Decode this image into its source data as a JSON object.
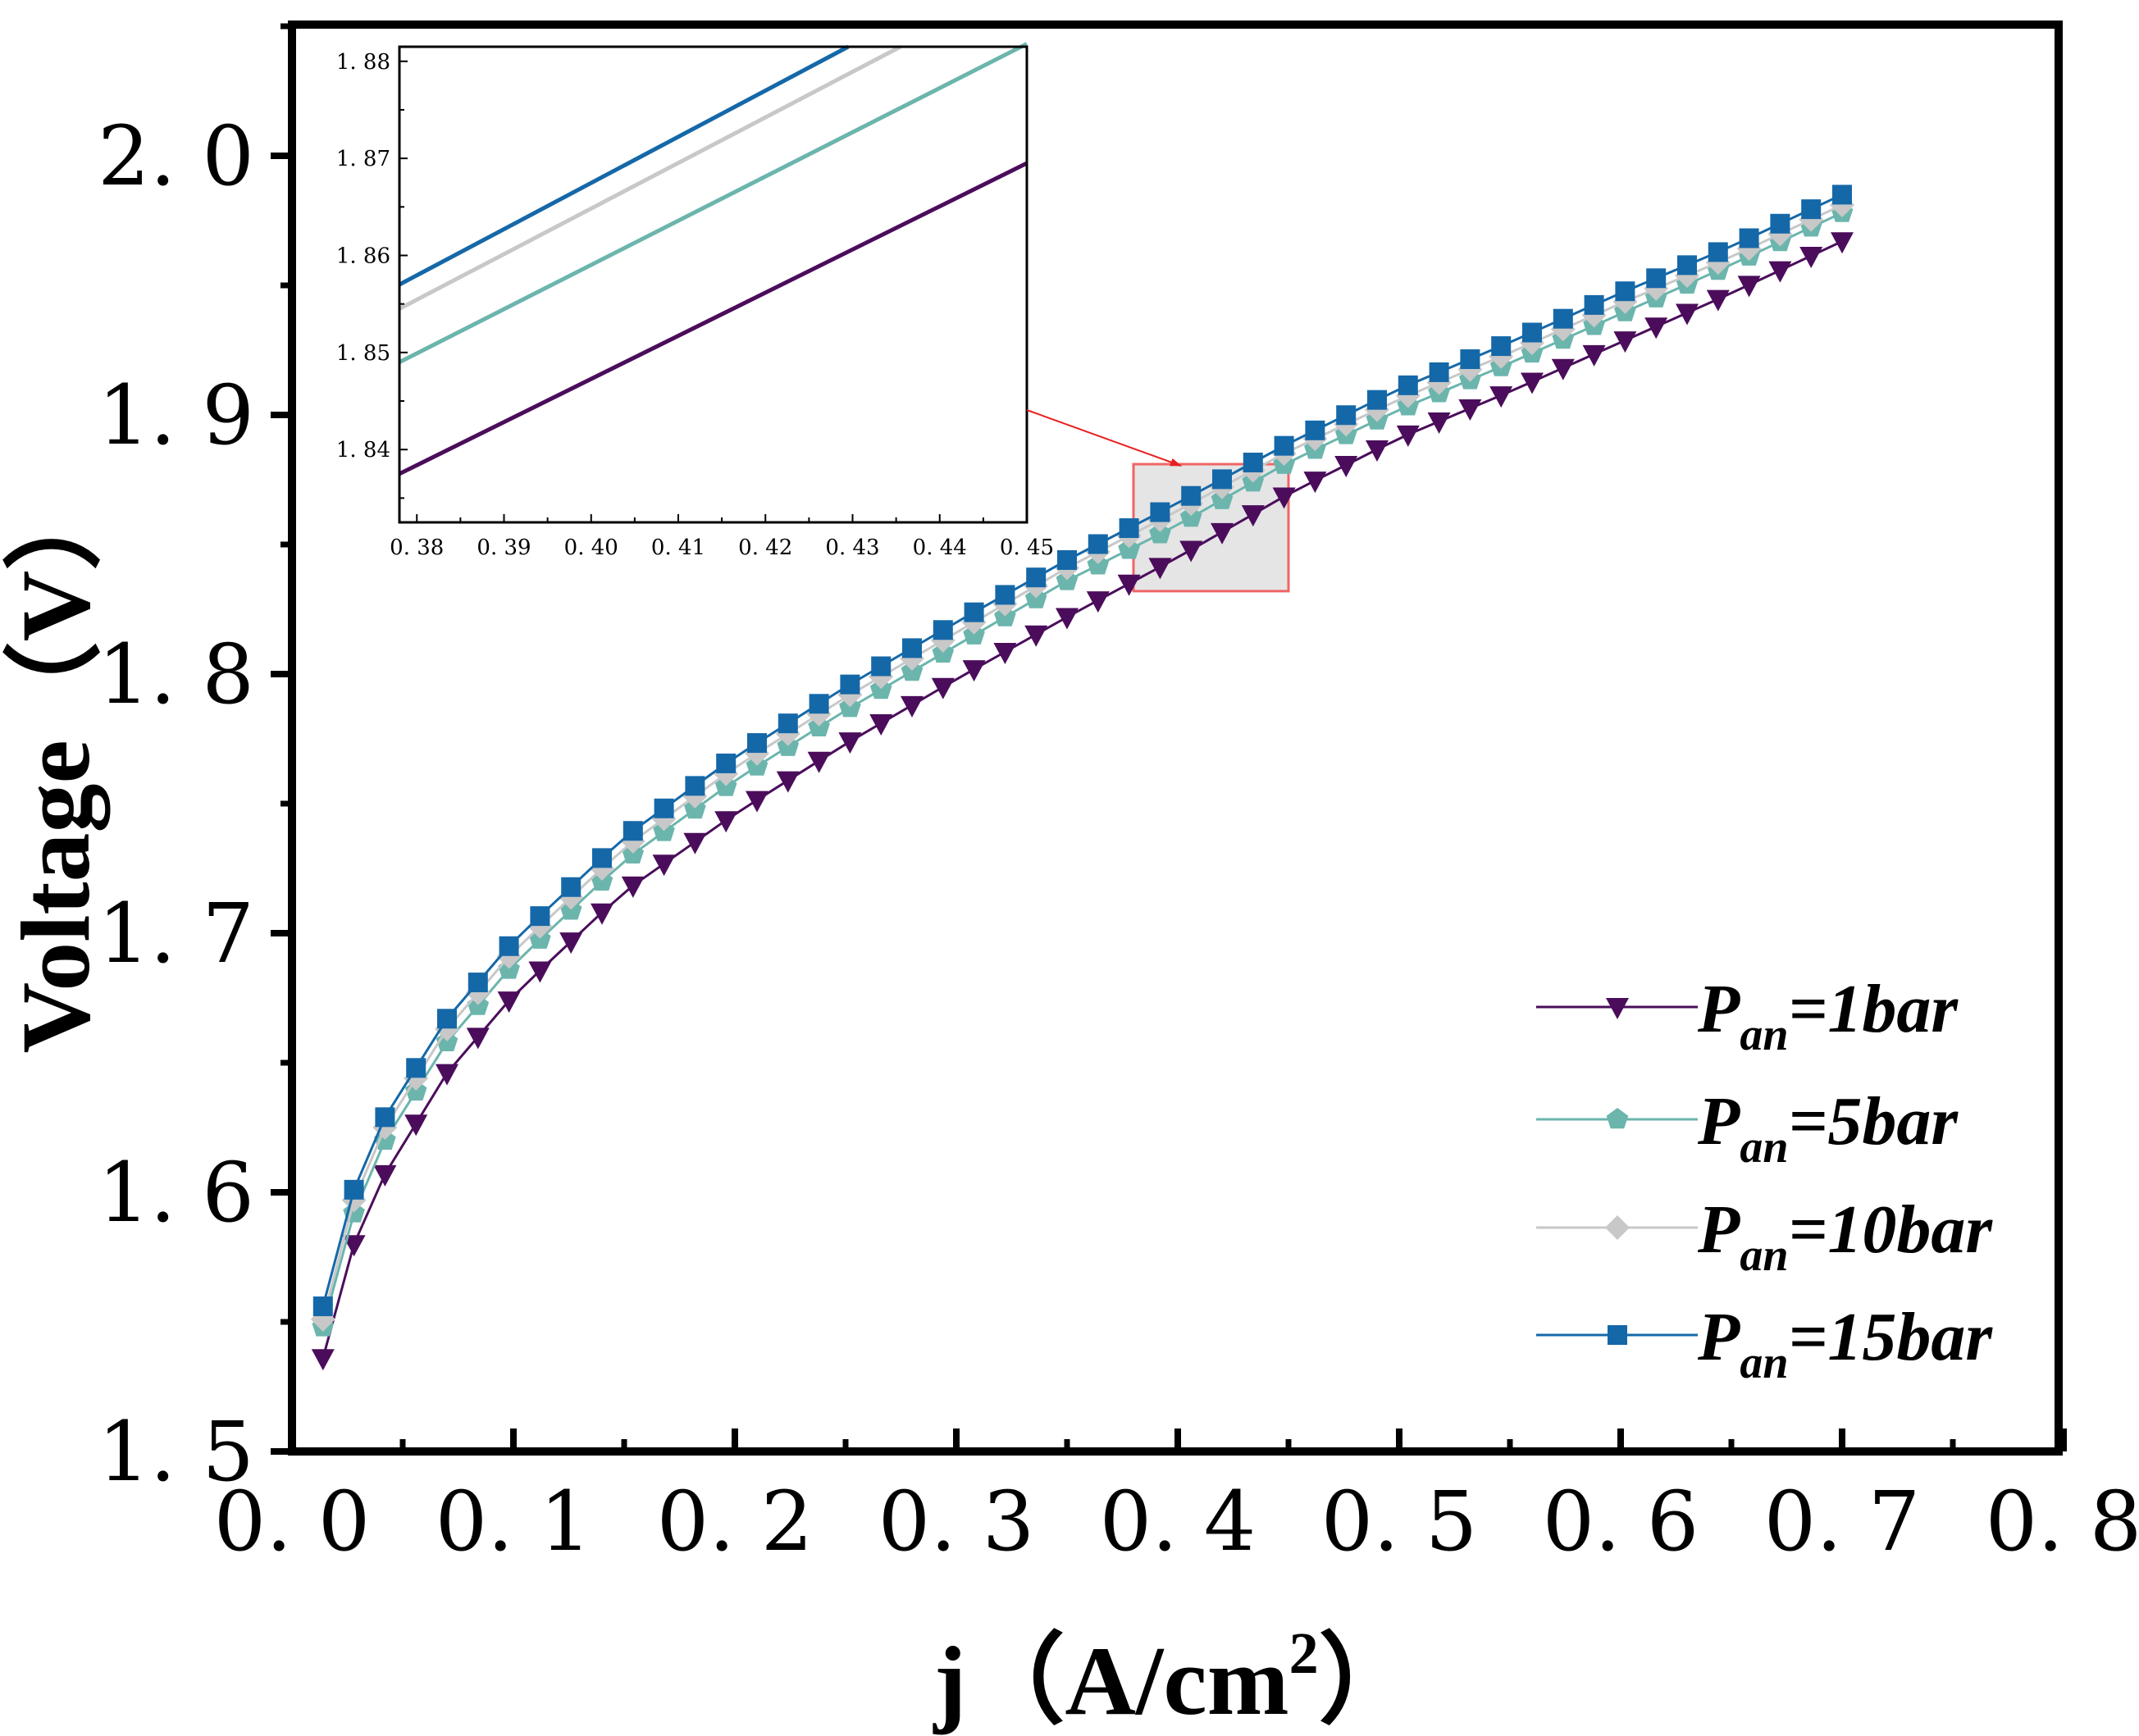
{
  "chart_data": {
    "type": "line",
    "xlabel": "j（A/cm²）",
    "xlabel_parts": {
      "main": "j（A/cm",
      "sup": "2",
      "end": "）"
    },
    "ylabel": "Voltage（V）",
    "xlim": [
      0.0,
      0.8
    ],
    "ylim": [
      1.5,
      2.05
    ],
    "x_ticks": [
      0.0,
      0.1,
      0.2,
      0.3,
      0.4,
      0.5,
      0.6,
      0.7,
      0.8
    ],
    "x_tick_labels": [
      "0. 0",
      "0. 1",
      "0. 2",
      "0. 3",
      "0. 4",
      "0. 5",
      "0. 6",
      "0. 7",
      "0. 8"
    ],
    "y_ticks": [
      1.5,
      1.6,
      1.7,
      1.8,
      1.9,
      2.0
    ],
    "y_tick_labels": [
      "1. 5",
      "1. 6",
      "1. 7",
      "1. 8",
      "1. 9",
      "2. 0"
    ],
    "grid": false,
    "legend_position": "lower-right",
    "series": [
      {
        "name": "P_an=1bar",
        "label_main": "P",
        "label_sub": "an",
        "label_rest": "=1bar",
        "color": "#4b0d5b",
        "marker": "triangle-down",
        "anchors": [
          [
            0.014,
            1.536
          ],
          [
            0.028,
            1.58
          ],
          [
            0.042,
            1.607
          ],
          [
            0.07,
            1.646
          ],
          [
            0.1,
            1.676
          ],
          [
            0.15,
            1.716
          ],
          [
            0.2,
            1.746
          ],
          [
            0.25,
            1.773
          ],
          [
            0.3,
            1.798
          ],
          [
            0.35,
            1.822
          ],
          [
            0.4,
            1.845
          ],
          [
            0.45,
            1.8695
          ],
          [
            0.5,
            1.891
          ],
          [
            0.55,
            1.909
          ],
          [
            0.6,
            1.928
          ],
          [
            0.65,
            1.947
          ],
          [
            0.7,
            1.967
          ]
        ]
      },
      {
        "name": "P_an=5bar",
        "label_main": "P",
        "label_sub": "an",
        "label_rest": "=5bar",
        "color": "#6bb5ad",
        "marker": "pentagon",
        "anchors": [
          [
            0.014,
            1.548
          ],
          [
            0.028,
            1.592
          ],
          [
            0.042,
            1.62
          ],
          [
            0.07,
            1.658
          ],
          [
            0.1,
            1.688
          ],
          [
            0.15,
            1.728
          ],
          [
            0.2,
            1.759
          ],
          [
            0.25,
            1.786
          ],
          [
            0.3,
            1.811
          ],
          [
            0.35,
            1.836
          ],
          [
            0.4,
            1.8575
          ],
          [
            0.45,
            1.8818
          ],
          [
            0.5,
            1.902
          ],
          [
            0.55,
            1.92
          ],
          [
            0.6,
            1.939
          ],
          [
            0.65,
            1.958
          ],
          [
            0.7,
            1.978
          ]
        ]
      },
      {
        "name": "P_an=10bar",
        "label_main": "P",
        "label_sub": "an",
        "label_rest": "=10bar",
        "color": "#c8c8c8",
        "marker": "diamond",
        "anchors": [
          [
            0.014,
            1.551
          ],
          [
            0.028,
            1.597
          ],
          [
            0.042,
            1.625
          ],
          [
            0.07,
            1.663
          ],
          [
            0.1,
            1.693
          ],
          [
            0.15,
            1.733
          ],
          [
            0.2,
            1.764
          ],
          [
            0.25,
            1.791
          ],
          [
            0.3,
            1.816
          ],
          [
            0.35,
            1.841
          ],
          [
            0.4,
            1.863
          ],
          [
            0.45,
            1.886
          ],
          [
            0.5,
            1.906
          ],
          [
            0.55,
            1.924
          ],
          [
            0.6,
            1.943
          ],
          [
            0.65,
            1.961
          ],
          [
            0.7,
            1.981
          ]
        ]
      },
      {
        "name": "P_an=15bar",
        "label_main": "P",
        "label_sub": "an",
        "label_rest": "=15bar",
        "color": "#1568a8",
        "marker": "square",
        "anchors": [
          [
            0.014,
            1.556
          ],
          [
            0.028,
            1.601
          ],
          [
            0.042,
            1.629
          ],
          [
            0.07,
            1.667
          ],
          [
            0.1,
            1.697
          ],
          [
            0.15,
            1.737
          ],
          [
            0.2,
            1.768
          ],
          [
            0.25,
            1.795
          ],
          [
            0.3,
            1.82
          ],
          [
            0.35,
            1.844
          ],
          [
            0.4,
            1.866
          ],
          [
            0.45,
            1.889
          ],
          [
            0.5,
            1.91
          ],
          [
            0.55,
            1.928
          ],
          [
            0.6,
            1.947
          ],
          [
            0.65,
            1.965
          ],
          [
            0.7,
            1.985
          ]
        ]
      }
    ],
    "marker_step": 0.014,
    "zoom_region": {
      "x": [
        0.38,
        0.45
      ],
      "y": [
        1.832,
        1.881
      ]
    },
    "inset": {
      "xlim": [
        0.378,
        0.45
      ],
      "ylim": [
        1.8325,
        1.8815
      ],
      "x_ticks": [
        0.38,
        0.39,
        0.4,
        0.41,
        0.42,
        0.43,
        0.44,
        0.45
      ],
      "x_tick_labels": [
        "0. 38",
        "0. 39",
        "0. 40",
        "0. 41",
        "0. 42",
        "0. 43",
        "0. 44",
        "0. 45"
      ],
      "y_ticks": [
        1.84,
        1.85,
        1.86,
        1.87,
        1.88
      ],
      "y_tick_labels": [
        "1. 84",
        "1. 85",
        "1. 86",
        "1. 87",
        "1. 88"
      ],
      "lines": [
        {
          "name": "P_an=1bar",
          "color": "#4b0d5b",
          "points": [
            [
              0.378,
              1.8375
            ],
            [
              0.45,
              1.8695
            ]
          ]
        },
        {
          "name": "P_an=5bar",
          "color": "#6bb5ad",
          "points": [
            [
              0.378,
              1.849
            ],
            [
              0.45,
              1.8818
            ]
          ]
        },
        {
          "name": "P_an=10bar",
          "color": "#c8c8c8",
          "points": [
            [
              0.378,
              1.8545
            ],
            [
              0.4355,
              1.8815
            ]
          ]
        },
        {
          "name": "P_an=15bar",
          "color": "#1568a8",
          "points": [
            [
              0.378,
              1.857
            ],
            [
              0.4295,
              1.8815
            ]
          ]
        }
      ]
    }
  }
}
